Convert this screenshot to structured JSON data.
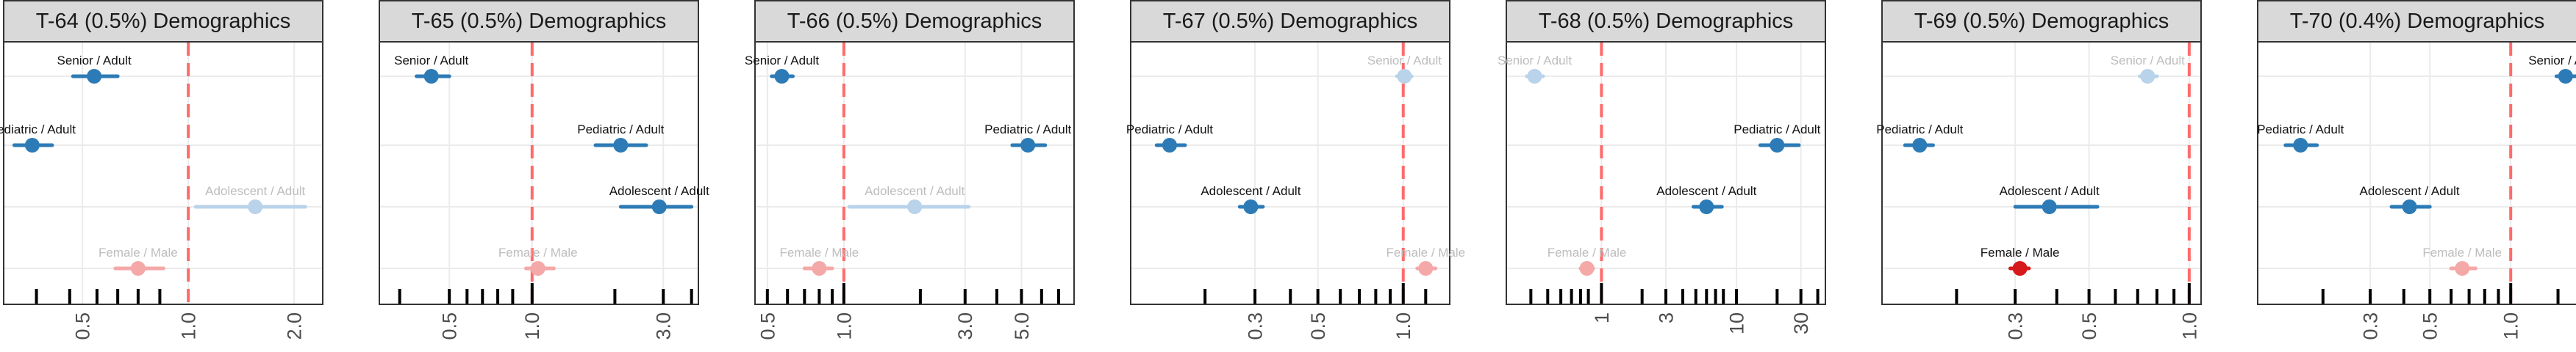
{
  "colors": {
    "significant_blue": "#2c7bb6",
    "nonsignificant_blue": "#b9d3ea",
    "significant_red": "#d7191c",
    "nonsignificant_red": "#f4a9a8",
    "reference_line": "#ff6b6b"
  },
  "chart_data": [
    {
      "type": "scatter",
      "title": "T-64 (0.5%) Demographics",
      "x_scale": "log",
      "xlim": [
        0.3,
        2.4
      ],
      "x_ticks": [
        0.5,
        1.0,
        2.0
      ],
      "x_tick_labels": [
        "0.5",
        "1.0",
        "2.0"
      ],
      "reference_x": 1.0,
      "rug_x": [
        0.37,
        0.46,
        0.55,
        0.63,
        0.72,
        0.83
      ],
      "points": [
        {
          "label": "Senior / Adult",
          "estimate": 0.54,
          "ci": [
            0.47,
            0.63
          ],
          "significant": true,
          "group": "age"
        },
        {
          "label": "Pediatric / Adult",
          "estimate": 0.36,
          "ci": [
            0.32,
            0.41
          ],
          "significant": true,
          "group": "age"
        },
        {
          "label": "Adolescent / Adult",
          "estimate": 1.55,
          "ci": [
            1.05,
            2.15
          ],
          "significant": false,
          "group": "age"
        },
        {
          "label": "Female / Male",
          "estimate": 0.72,
          "ci": [
            0.62,
            0.85
          ],
          "significant": false,
          "group": "sex"
        }
      ]
    },
    {
      "type": "scatter",
      "title": "T-65 (0.5%) Demographics",
      "x_scale": "log",
      "xlim": [
        0.28,
        4.0
      ],
      "x_ticks": [
        0.5,
        1.0,
        3.0
      ],
      "x_tick_labels": [
        "0.5",
        "1.0",
        "3.0"
      ],
      "reference_x": 1.0,
      "rug_x": [
        0.33,
        0.5,
        0.58,
        0.66,
        0.75,
        0.85,
        1.0,
        2.0,
        3.0,
        3.8
      ],
      "points": [
        {
          "label": "Senior / Adult",
          "estimate": 0.43,
          "ci": [
            0.38,
            0.5
          ],
          "significant": true,
          "group": "age"
        },
        {
          "label": "Pediatric / Adult",
          "estimate": 2.1,
          "ci": [
            1.7,
            2.6
          ],
          "significant": true,
          "group": "age"
        },
        {
          "label": "Adolescent / Adult",
          "estimate": 2.9,
          "ci": [
            2.1,
            3.8
          ],
          "significant": true,
          "group": "age"
        },
        {
          "label": "Female / Male",
          "estimate": 1.05,
          "ci": [
            0.95,
            1.2
          ],
          "significant": false,
          "group": "sex"
        }
      ]
    },
    {
      "type": "scatter",
      "title": "T-66 (0.5%) Demographics",
      "x_scale": "log",
      "xlim": [
        0.45,
        8.0
      ],
      "x_ticks": [
        0.5,
        1.0,
        3.0,
        5.0
      ],
      "x_tick_labels": [
        "0.5",
        "1.0",
        "3.0",
        "5.0"
      ],
      "reference_x": 1.0,
      "rug_x": [
        0.5,
        0.6,
        0.7,
        0.8,
        0.9,
        1.0,
        2.0,
        3.0,
        4.0,
        5.0,
        6.0,
        7.0
      ],
      "points": [
        {
          "label": "Senior / Adult",
          "estimate": 0.57,
          "ci": [
            0.52,
            0.63
          ],
          "significant": true,
          "group": "age"
        },
        {
          "label": "Pediatric / Adult",
          "estimate": 5.3,
          "ci": [
            4.6,
            6.2
          ],
          "significant": true,
          "group": "age"
        },
        {
          "label": "Adolescent / Adult",
          "estimate": 1.9,
          "ci": [
            1.05,
            3.1
          ],
          "significant": false,
          "group": "age"
        },
        {
          "label": "Female / Male",
          "estimate": 0.8,
          "ci": [
            0.7,
            0.9
          ],
          "significant": false,
          "group": "sex"
        }
      ]
    },
    {
      "type": "scatter",
      "title": "T-67 (0.5%) Demographics",
      "x_scale": "log",
      "xlim": [
        0.11,
        1.45
      ],
      "x_ticks": [
        0.3,
        0.5,
        1.0
      ],
      "x_tick_labels": [
        "0.3",
        "0.5",
        "1.0"
      ],
      "reference_x": 1.0,
      "rug_x": [
        0.2,
        0.3,
        0.4,
        0.5,
        0.6,
        0.7,
        0.8,
        0.9,
        1.0,
        1.2
      ],
      "points": [
        {
          "label": "Senior / Adult",
          "estimate": 1.01,
          "ci": [
            0.95,
            1.07
          ],
          "significant": false,
          "group": "age"
        },
        {
          "label": "Pediatric / Adult",
          "estimate": 0.15,
          "ci": [
            0.135,
            0.17
          ],
          "significant": true,
          "group": "age"
        },
        {
          "label": "Adolescent / Adult",
          "estimate": 0.29,
          "ci": [
            0.265,
            0.32
          ],
          "significant": true,
          "group": "age"
        },
        {
          "label": "Female / Male",
          "estimate": 1.2,
          "ci": [
            1.12,
            1.3
          ],
          "significant": false,
          "group": "sex"
        }
      ]
    },
    {
      "type": "scatter",
      "title": "T-68 (0.5%) Demographics",
      "x_scale": "log",
      "xlim": [
        0.2,
        45
      ],
      "x_ticks": [
        1,
        3,
        10,
        30
      ],
      "x_tick_labels": [
        "1",
        "3",
        "10",
        "30"
      ],
      "reference_x": 1.0,
      "rug_x": [
        0.3,
        0.4,
        0.5,
        0.6,
        0.7,
        0.8,
        1,
        2,
        3,
        4,
        5,
        6,
        7,
        8,
        10,
        20,
        30,
        40
      ],
      "points": [
        {
          "label": "Senior / Adult",
          "estimate": 0.32,
          "ci": [
            0.28,
            0.37
          ],
          "significant": false,
          "group": "age"
        },
        {
          "label": "Pediatric / Adult",
          "estimate": 20,
          "ci": [
            15,
            29
          ],
          "significant": true,
          "group": "age"
        },
        {
          "label": "Adolescent / Adult",
          "estimate": 6.0,
          "ci": [
            4.8,
            7.8
          ],
          "significant": true,
          "group": "age"
        },
        {
          "label": "Female / Male",
          "estimate": 0.78,
          "ci": [
            0.7,
            0.87
          ],
          "significant": false,
          "group": "sex"
        }
      ]
    },
    {
      "type": "scatter",
      "title": "T-69 (0.5%) Demographics",
      "x_scale": "log",
      "xlim": [
        0.12,
        1.08
      ],
      "x_ticks": [
        0.3,
        0.5,
        1.0
      ],
      "x_tick_labels": [
        "0.3",
        "0.5",
        "1.0"
      ],
      "reference_x": 1.0,
      "rug_x": [
        0.2,
        0.3,
        0.4,
        0.5,
        0.6,
        0.7,
        0.8,
        0.9,
        1.0
      ],
      "points": [
        {
          "label": "Senior / Adult",
          "estimate": 0.75,
          "ci": [
            0.71,
            0.8
          ],
          "significant": false,
          "group": "age"
        },
        {
          "label": "Pediatric / Adult",
          "estimate": 0.155,
          "ci": [
            0.14,
            0.17
          ],
          "significant": true,
          "group": "age"
        },
        {
          "label": "Adolescent / Adult",
          "estimate": 0.38,
          "ci": [
            0.3,
            0.53
          ],
          "significant": true,
          "group": "age"
        },
        {
          "label": "Female / Male",
          "estimate": 0.31,
          "ci": [
            0.29,
            0.33
          ],
          "significant": true,
          "group": "sex"
        }
      ]
    },
    {
      "type": "scatter",
      "title": "T-70 (0.4%) Demographics",
      "x_scale": "log",
      "xlim": [
        0.115,
        1.75
      ],
      "x_ticks": [
        0.3,
        0.5,
        1.0
      ],
      "x_tick_labels": [
        "0.3",
        "0.5",
        "1.0"
      ],
      "reference_x": 1.0,
      "rug_x": [
        0.2,
        0.3,
        0.4,
        0.5,
        0.6,
        0.7,
        0.8,
        0.9,
        1.0,
        1.5
      ],
      "points": [
        {
          "label": "Senior / Adult",
          "estimate": 1.6,
          "ci": [
            1.48,
            1.75
          ],
          "significant": true,
          "group": "age"
        },
        {
          "label": "Pediatric / Adult",
          "estimate": 0.165,
          "ci": [
            0.145,
            0.19
          ],
          "significant": true,
          "group": "age"
        },
        {
          "label": "Adolescent / Adult",
          "estimate": 0.42,
          "ci": [
            0.36,
            0.5
          ],
          "significant": true,
          "group": "age"
        },
        {
          "label": "Female / Male",
          "estimate": 0.66,
          "ci": [
            0.6,
            0.74
          ],
          "significant": false,
          "group": "sex"
        }
      ]
    }
  ]
}
